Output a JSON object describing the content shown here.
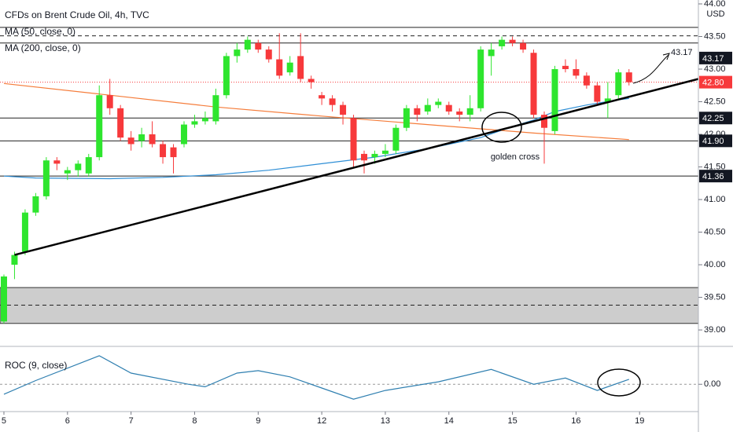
{
  "chart_data": [
    {
      "type": "candlestick",
      "title": "CFDs on Brent Crude Oil, 4h, TVC",
      "currency": "USD",
      "up_color": "#2ee52e",
      "down_color": "#f7393b",
      "open": [
        39.13,
        40.0,
        40.2,
        40.8,
        41.05,
        41.6,
        41.4,
        41.45,
        41.4,
        41.65,
        42.6,
        42.4,
        41.95,
        41.9,
        42.0,
        41.85,
        41.8,
        41.85,
        42.15,
        42.2,
        42.2,
        42.6,
        43.2,
        43.3,
        43.4,
        43.3,
        43.15,
        42.95,
        43.2,
        42.85,
        42.6,
        42.55,
        42.45,
        42.25,
        41.7,
        41.65,
        41.7,
        41.75,
        42.1,
        42.4,
        42.35,
        42.45,
        42.45,
        42.35,
        42.3,
        42.4,
        43.2,
        43.35,
        43.45,
        43.4,
        43.25,
        42.3,
        42.05,
        43.05,
        43.0,
        42.9,
        42.75,
        42.5,
        42.6,
        42.95
      ],
      "high": [
        39.85,
        40.2,
        40.85,
        41.1,
        41.65,
        41.65,
        41.5,
        41.6,
        41.7,
        42.75,
        42.85,
        42.45,
        42.05,
        42.1,
        42.2,
        41.9,
        41.85,
        42.2,
        42.3,
        42.35,
        42.7,
        43.25,
        43.4,
        43.5,
        43.45,
        43.35,
        43.55,
        43.2,
        43.55,
        42.9,
        42.65,
        42.6,
        42.5,
        42.3,
        41.75,
        41.75,
        41.85,
        42.15,
        42.45,
        42.45,
        42.55,
        42.55,
        42.5,
        42.4,
        42.6,
        43.35,
        43.4,
        43.5,
        43.5,
        43.45,
        43.3,
        42.35,
        43.05,
        43.15,
        43.15,
        42.95,
        42.8,
        42.8,
        43.0,
        43.0
      ],
      "low": [
        39.1,
        39.78,
        40.15,
        40.75,
        41.0,
        41.45,
        41.3,
        41.35,
        41.35,
        41.6,
        42.3,
        41.9,
        41.75,
        41.8,
        41.8,
        41.55,
        41.4,
        41.8,
        42.1,
        42.15,
        42.15,
        42.55,
        43.1,
        43.25,
        43.25,
        43.1,
        42.85,
        42.9,
        42.8,
        42.7,
        42.45,
        42.35,
        42.15,
        41.5,
        41.4,
        41.55,
        41.65,
        41.7,
        42.05,
        42.2,
        42.3,
        42.4,
        42.3,
        42.2,
        42.2,
        42.35,
        42.9,
        43.3,
        43.35,
        43.25,
        42.25,
        41.55,
        42.0,
        42.95,
        42.85,
        42.7,
        42.45,
        42.25,
        42.55,
        42.75
      ],
      "close": [
        39.82,
        40.15,
        40.8,
        41.05,
        41.6,
        41.55,
        41.45,
        41.55,
        41.65,
        42.6,
        42.4,
        41.95,
        41.85,
        42.0,
        41.85,
        41.65,
        41.65,
        42.15,
        42.2,
        42.25,
        42.6,
        43.2,
        43.3,
        43.45,
        43.3,
        43.15,
        42.9,
        43.1,
        42.85,
        42.8,
        42.55,
        42.45,
        42.3,
        41.6,
        41.6,
        41.7,
        41.75,
        42.1,
        42.4,
        42.3,
        42.45,
        42.5,
        42.35,
        42.3,
        42.4,
        43.3,
        43.3,
        43.45,
        43.4,
        43.3,
        42.3,
        42.1,
        43.0,
        43.0,
        42.9,
        42.75,
        42.5,
        42.55,
        42.95,
        42.8
      ],
      "series": [
        {
          "name": "MA (50, close, 0)",
          "color": "#2f8fd6",
          "x": [
            0,
            3,
            10,
            15,
            20,
            25,
            30,
            35,
            40,
            45,
            48,
            50,
            52,
            55,
            58,
            59
          ],
          "values": [
            41.36,
            41.33,
            41.32,
            41.34,
            41.38,
            41.45,
            41.55,
            41.65,
            41.78,
            41.95,
            42.12,
            42.22,
            42.35,
            42.45,
            42.53,
            42.55
          ]
        },
        {
          "name": "MA (200, close, 0)",
          "color": "#f57c3a",
          "x": [
            0,
            10,
            20,
            30,
            40,
            50,
            59
          ],
          "values": [
            42.78,
            42.6,
            42.42,
            42.28,
            42.15,
            42.02,
            41.92
          ]
        }
      ],
      "levels": [
        {
          "value": 43.64,
          "style": "solid"
        },
        {
          "value": 43.51,
          "style": "dashed"
        },
        {
          "value": 43.4,
          "style": "solid"
        },
        {
          "value": 42.25,
          "style": "solid"
        },
        {
          "value": 41.9,
          "style": "solid"
        },
        {
          "value": 41.36,
          "style": "solid"
        },
        {
          "value": 39.38,
          "style": "dashed"
        }
      ],
      "zones": [
        {
          "from": 39.1,
          "to": 39.65,
          "color": "#c8c8c8"
        }
      ],
      "last_price": 42.8,
      "trendlines": [
        {
          "x": [
            1,
            65.55
          ],
          "values": [
            40.15,
            42.85
          ]
        }
      ],
      "price_labels": [
        {
          "value": 43.17,
          "label": "43.17",
          "color": "#131722"
        },
        {
          "value": 42.8,
          "label": "42.80",
          "color": "#f7393b"
        },
        {
          "value": 42.25,
          "label": "42.25",
          "color": "#131722"
        },
        {
          "value": 41.9,
          "label": "41.90",
          "color": "#131722"
        },
        {
          "value": 41.36,
          "label": "41.36",
          "color": "#131722"
        }
      ],
      "annotations": [
        "golden cross",
        "43.17"
      ],
      "xlim": [
        -0.37,
        65.55
      ],
      "xticks": [
        {
          "value": 0,
          "label": "5"
        },
        {
          "value": 6,
          "label": "6"
        },
        {
          "value": 12,
          "label": "7"
        },
        {
          "value": 18,
          "label": "8"
        },
        {
          "value": 24,
          "label": "9"
        },
        {
          "value": 30,
          "label": "12"
        },
        {
          "value": 36,
          "label": "13"
        },
        {
          "value": 42,
          "label": "14"
        },
        {
          "value": 48,
          "label": "15"
        },
        {
          "value": 54,
          "label": "16"
        },
        {
          "value": 60,
          "label": "19"
        }
      ],
      "ylim": [
        38.76,
        44.06
      ],
      "yticks": [
        {
          "value": 39,
          "label": "39.00"
        },
        {
          "value": 39.5,
          "label": "39.50"
        },
        {
          "value": 40,
          "label": "40.00"
        },
        {
          "value": 40.5,
          "label": "40.50"
        },
        {
          "value": 41,
          "label": "41.00"
        },
        {
          "value": 41.5,
          "label": "41.50"
        },
        {
          "value": 42,
          "label": "42.00"
        },
        {
          "value": 42.5,
          "label": "42.50"
        },
        {
          "value": 43,
          "label": "43.00"
        },
        {
          "value": 43.5,
          "label": "43.50"
        },
        {
          "value": 44,
          "label": "44.00"
        }
      ]
    },
    {
      "type": "line",
      "title": "ROC (9, close)",
      "color": "#2f7fb0",
      "x": [
        0,
        3,
        9,
        12,
        17.4,
        19,
        22,
        24,
        27,
        30,
        33,
        36,
        41,
        46,
        50,
        53,
        56,
        59
      ],
      "values": [
        -0.4,
        0.15,
        1.15,
        0.45,
        0,
        -0.1,
        0.45,
        0.55,
        0.3,
        -0.15,
        -0.6,
        -0.25,
        0.1,
        0.6,
        0,
        0.25,
        -0.25,
        0.2
      ],
      "xlim": [
        -0.37,
        65.55
      ],
      "ylim": [
        -1.1,
        1.4
      ],
      "yticks": [
        {
          "value": 0,
          "label": "0.00"
        }
      ]
    }
  ]
}
